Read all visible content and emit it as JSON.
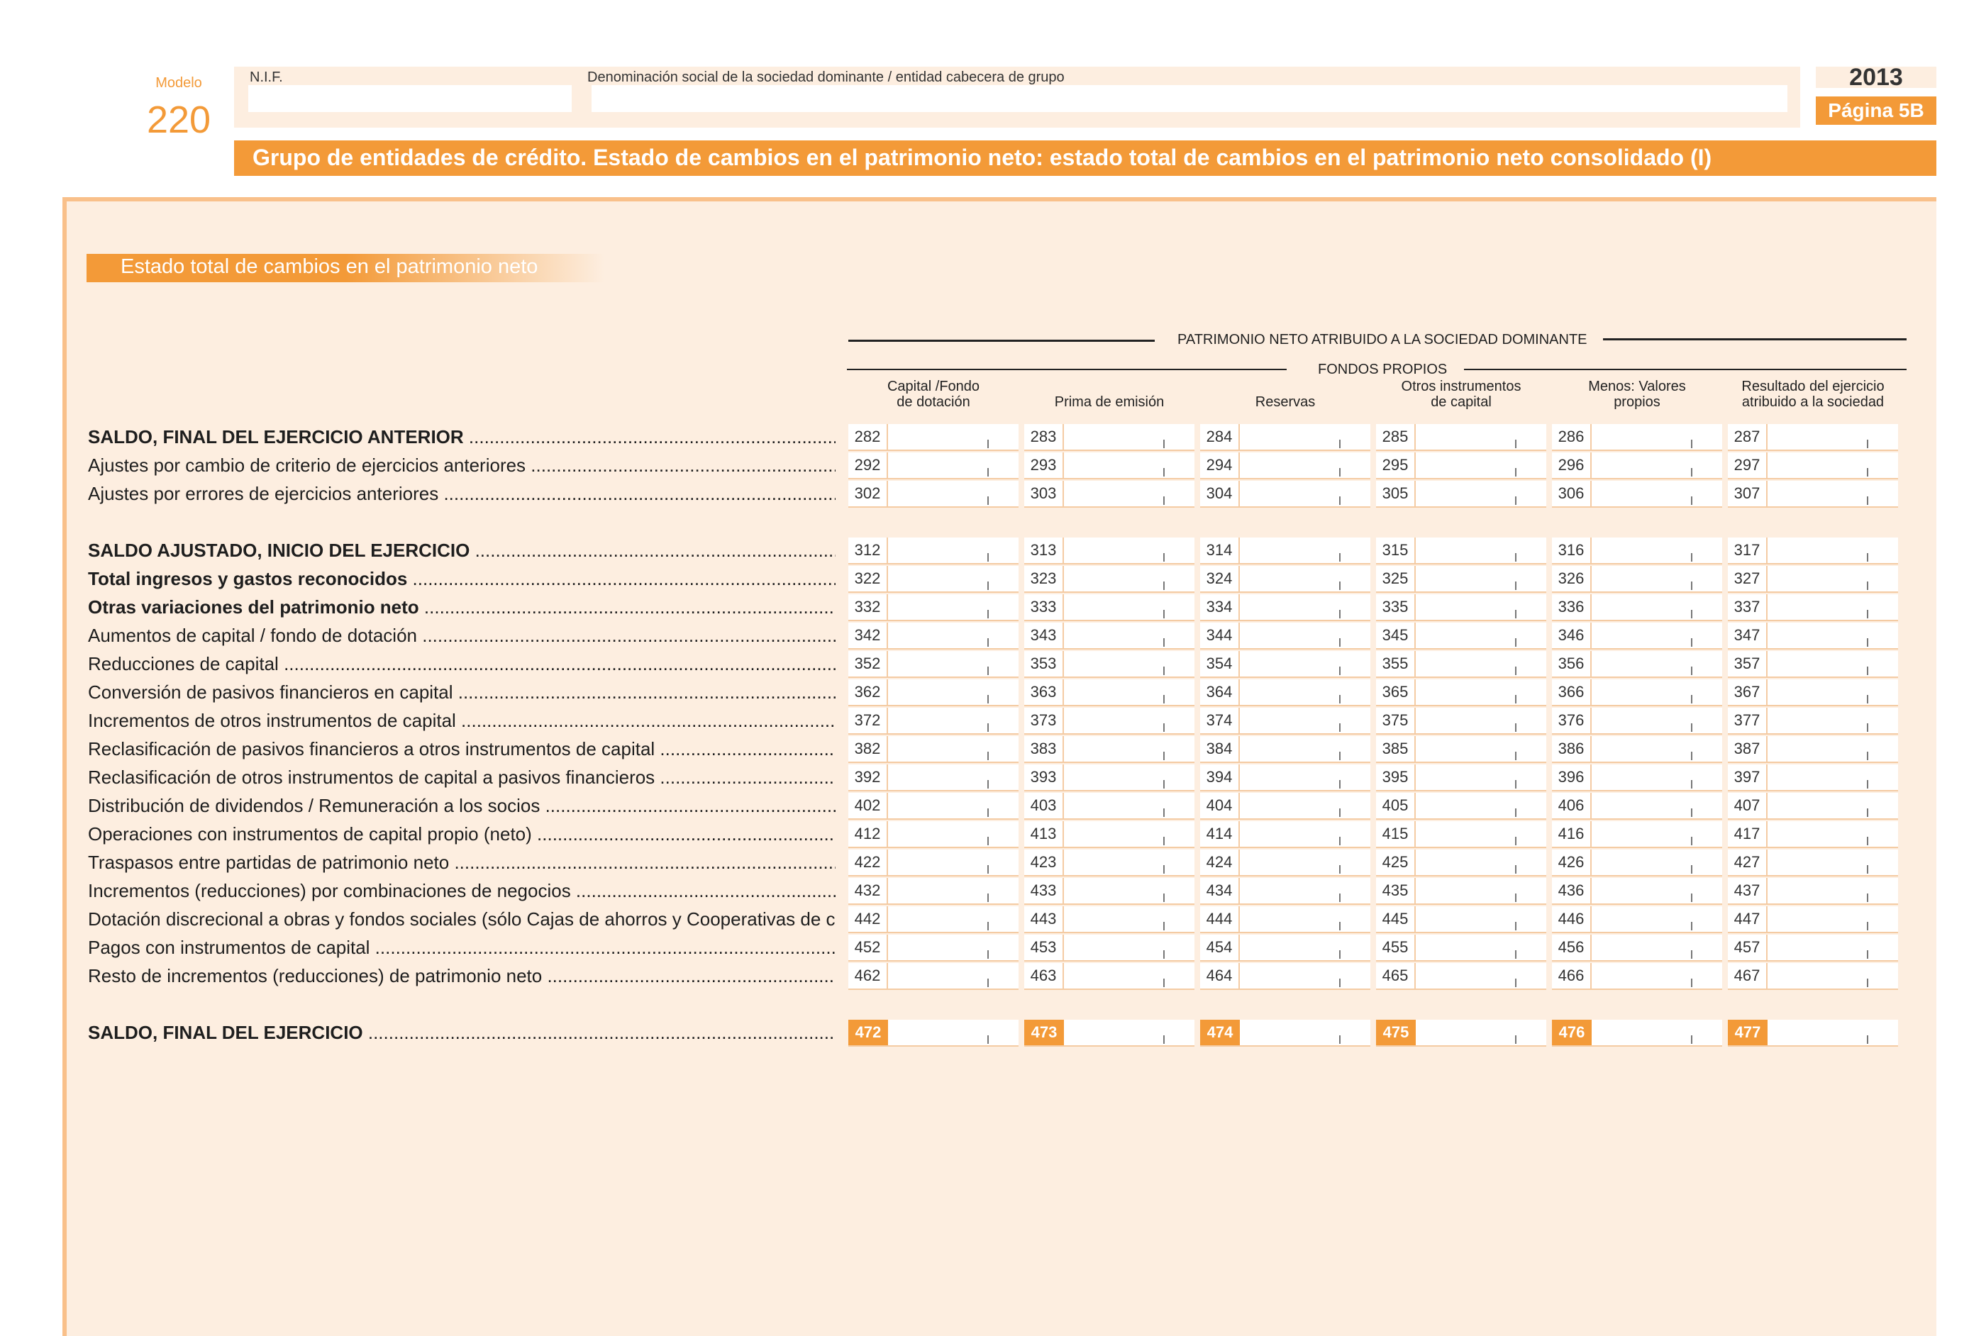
{
  "header": {
    "modelo_label": "Modelo",
    "modelo_number": "220",
    "nif_label": "N.I.F.",
    "denominacion_label": "Denominación social de la sociedad dominante / entidad cabecera de grupo",
    "nif_value": "",
    "denominacion_value": "",
    "year": "2013",
    "page": "Página 5B",
    "title": "Grupo de entidades de crédito. Estado de cambios en el patrimonio neto: estado total de cambios en el patrimonio neto consolidado (I)"
  },
  "section": {
    "label": "Estado total de cambios en el patrimonio neto",
    "group_title": "PATRIMONIO NETO ATRIBUIDO A LA SOCIEDAD DOMINANTE",
    "subgroup_title": "FONDOS PROPIOS",
    "columns": [
      [
        "Capital /Fondo",
        "de dotación"
      ],
      [
        "Prima de emisión"
      ],
      [
        "Reservas"
      ],
      [
        "Otros instrumentos",
        "de capital"
      ],
      [
        "Menos: Valores",
        "propios"
      ],
      [
        "Resultado del ejercicio",
        "atribuido a la sociedad"
      ]
    ]
  },
  "rows": [
    {
      "label": "SALDO, FINAL DEL EJERCICIO ANTERIOR",
      "bold": true,
      "codes": [
        "282",
        "283",
        "284",
        "285",
        "286",
        "287"
      ]
    },
    {
      "label": "Ajustes por cambio de criterio de ejercicios anteriores",
      "bold": false,
      "codes": [
        "292",
        "293",
        "294",
        "295",
        "296",
        "297"
      ]
    },
    {
      "label": "Ajustes por errores de ejercicios anteriores",
      "bold": false,
      "codes": [
        "302",
        "303",
        "304",
        "305",
        "306",
        "307"
      ]
    },
    {
      "label": "SALDO AJUSTADO, INICIO DEL EJERCICIO",
      "bold": true,
      "codes": [
        "312",
        "313",
        "314",
        "315",
        "316",
        "317"
      ]
    },
    {
      "label": "Total ingresos y gastos reconocidos",
      "bold": true,
      "codes": [
        "322",
        "323",
        "324",
        "325",
        "326",
        "327"
      ]
    },
    {
      "label": "Otras variaciones del patrimonio neto",
      "bold": true,
      "codes": [
        "332",
        "333",
        "334",
        "335",
        "336",
        "337"
      ]
    },
    {
      "label": "Aumentos de capital / fondo de dotación",
      "bold": false,
      "codes": [
        "342",
        "343",
        "344",
        "345",
        "346",
        "347"
      ]
    },
    {
      "label": "Reducciones de capital",
      "bold": false,
      "codes": [
        "352",
        "353",
        "354",
        "355",
        "356",
        "357"
      ]
    },
    {
      "label": "Conversión de pasivos financieros en capital",
      "bold": false,
      "codes": [
        "362",
        "363",
        "364",
        "365",
        "366",
        "367"
      ]
    },
    {
      "label": "Incrementos de otros instrumentos de capital",
      "bold": false,
      "codes": [
        "372",
        "373",
        "374",
        "375",
        "376",
        "377"
      ]
    },
    {
      "label": "Reclasificación de pasivos financieros a otros instrumentos de capital",
      "bold": false,
      "codes": [
        "382",
        "383",
        "384",
        "385",
        "386",
        "387"
      ]
    },
    {
      "label": "Reclasificación de otros instrumentos de capital a pasivos financieros",
      "bold": false,
      "codes": [
        "392",
        "393",
        "394",
        "395",
        "396",
        "397"
      ]
    },
    {
      "label": "Distribución de dividendos / Remuneración a los socios",
      "bold": false,
      "codes": [
        "402",
        "403",
        "404",
        "405",
        "406",
        "407"
      ]
    },
    {
      "label": "Operaciones con instrumentos de capital propio (neto)",
      "bold": false,
      "codes": [
        "412",
        "413",
        "414",
        "415",
        "416",
        "417"
      ]
    },
    {
      "label": "Traspasos entre partidas de patrimonio neto",
      "bold": false,
      "codes": [
        "422",
        "423",
        "424",
        "425",
        "426",
        "427"
      ]
    },
    {
      "label": "Incrementos (reducciones) por combinaciones de negocios",
      "bold": false,
      "codes": [
        "432",
        "433",
        "434",
        "435",
        "436",
        "437"
      ]
    },
    {
      "label": "Dotación discrecional a obras y fondos sociales (sólo Cajas de ahorros y Cooperativas de crédito)",
      "bold": false,
      "codes": [
        "442",
        "443",
        "444",
        "445",
        "446",
        "447"
      ]
    },
    {
      "label": "Pagos con instrumentos de capital",
      "bold": false,
      "codes": [
        "452",
        "453",
        "454",
        "455",
        "456",
        "457"
      ]
    },
    {
      "label": "Resto de incrementos (reducciones) de patrimonio neto",
      "bold": false,
      "codes": [
        "462",
        "463",
        "464",
        "465",
        "466",
        "467"
      ]
    },
    {
      "label": "SALDO, FINAL DEL EJERCICIO",
      "bold": true,
      "final": true,
      "codes": [
        "472",
        "473",
        "474",
        "475",
        "476",
        "477"
      ]
    }
  ]
}
